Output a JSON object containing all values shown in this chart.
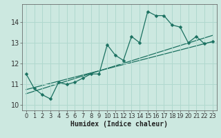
{
  "xlabel": "Humidex (Indice chaleur)",
  "bg_color": "#cce8e0",
  "line_color": "#1a7060",
  "grid_color": "#b0d8ce",
  "xlim": [
    -0.5,
    23.5
  ],
  "ylim": [
    9.75,
    14.85
  ],
  "yticks": [
    10,
    11,
    12,
    13,
    14
  ],
  "xticks": [
    0,
    1,
    2,
    3,
    4,
    5,
    6,
    7,
    8,
    9,
    10,
    11,
    12,
    13,
    14,
    15,
    16,
    17,
    18,
    19,
    20,
    21,
    22,
    23
  ],
  "data_line": [
    11.5,
    10.8,
    10.5,
    10.3,
    11.1,
    11.0,
    11.1,
    11.3,
    11.5,
    11.5,
    12.9,
    12.4,
    12.15,
    13.3,
    13.0,
    14.5,
    14.3,
    14.3,
    13.85,
    13.75,
    13.0,
    13.3,
    12.95,
    13.05
  ],
  "trend1_x": [
    0,
    23
  ],
  "trend1_y": [
    10.75,
    13.05
  ],
  "trend2_x": [
    0,
    23
  ],
  "trend2_y": [
    10.55,
    13.35
  ],
  "marker_size": 2.5,
  "linewidth": 0.9,
  "xlabel_fontsize": 7,
  "tick_fontsize": 6
}
